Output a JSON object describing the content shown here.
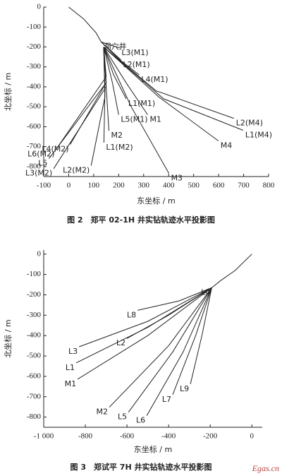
{
  "chart_data": [
    {
      "type": "line",
      "title": "图 2　郑平 02-1H 井实钻轨迹水平投影图",
      "x_label": "东坐标 / m",
      "y_label": "北坐标 / m",
      "color": "#222222",
      "xlim": [
        -100,
        800
      ],
      "ylim": [
        -850,
        0
      ],
      "xticks": [
        -100,
        0,
        100,
        200,
        300,
        400,
        500,
        600,
        700,
        800
      ],
      "yticks": [
        0,
        -100,
        -200,
        -300,
        -400,
        -500,
        -600,
        -700,
        -800
      ],
      "series": [
        {
          "name": "洞穴井",
          "x": [
            0,
            60,
            110,
            130
          ],
          "values": [
            0,
            -60,
            -130,
            -175
          ]
        },
        {
          "name": "L3(M1)",
          "x": [
            130,
            165,
            203
          ],
          "values": [
            -175,
            -190,
            -205
          ]
        },
        {
          "name": "L2(M1)",
          "x": [
            130,
            170,
            209
          ],
          "values": [
            -175,
            -220,
            -265
          ]
        },
        {
          "name": "L4(M1)",
          "x": [
            130,
            200,
            282
          ],
          "values": [
            -175,
            -260,
            -340
          ]
        },
        {
          "name": "L2(M4)",
          "x": [
            140,
            350,
            661
          ],
          "values": [
            -200,
            -420,
            -558
          ]
        },
        {
          "name": "L1(M4)",
          "x": [
            140,
            380,
            698
          ],
          "values": [
            -200,
            -460,
            -618
          ]
        },
        {
          "name": "M4",
          "x": [
            140,
            360,
            599
          ],
          "values": [
            -200,
            -450,
            -671
          ]
        },
        {
          "name": "M1",
          "x": [
            140,
            230,
            316
          ],
          "values": [
            -200,
            -380,
            -540
          ]
        },
        {
          "name": "L1(M1)",
          "x": [
            140,
            180,
            230
          ],
          "values": [
            -200,
            -340,
            -460
          ]
        },
        {
          "name": "M3",
          "x": [
            140,
            250,
            401
          ],
          "values": [
            -200,
            -500,
            -834
          ]
        },
        {
          "name": "L5(M1)",
          "x": [
            140,
            175,
            200
          ],
          "values": [
            -200,
            -380,
            -540
          ]
        },
        {
          "name": "M2",
          "x": [
            140,
            150,
            161
          ],
          "values": [
            -200,
            -400,
            -620
          ]
        },
        {
          "name": "L1(M2)",
          "x": [
            140,
            145,
            141
          ],
          "values": [
            -200,
            -420,
            -680
          ]
        },
        {
          "name": "L2(M2)",
          "x": [
            140,
            145,
            90
          ],
          "values": [
            -200,
            -450,
            -795
          ]
        },
        {
          "name": "L6(M2)",
          "x": [
            140,
            150,
            -51
          ],
          "values": [
            -200,
            -350,
            -714
          ]
        },
        {
          "name": "L4(M2)",
          "x": [
            140,
            150,
            6
          ],
          "values": [
            -200,
            -380,
            -689
          ]
        },
        {
          "name": "L5",
          "x": [
            140,
            150,
            -79
          ],
          "values": [
            -200,
            -380,
            -760
          ]
        },
        {
          "name": "L3(M2)",
          "x": [
            140,
            150,
            -60
          ],
          "values": [
            -200,
            -400,
            -810
          ]
        }
      ]
    },
    {
      "type": "line",
      "title": "图 3　郑试平 7H 井实钻轨迹水平投影图",
      "x_label": "东坐标 / m",
      "y_label": "北坐标 / m",
      "color": "#222222",
      "watermark": "Egas.cn",
      "xlim": [
        -1000,
        50
      ],
      "ylim": [
        -850,
        20
      ],
      "xticks": [
        {
          "value": -1000,
          "label": "-1 000"
        },
        -800,
        -600,
        -400,
        -200,
        0
      ],
      "yticks": [
        0,
        -100,
        -200,
        -300,
        -400,
        -500,
        -600,
        -700,
        -800
      ],
      "series": [
        {
          "name": "L4",
          "x": [
            0,
            -80,
            -150,
            -193
          ],
          "values": [
            0,
            -80,
            -130,
            -165
          ]
        },
        {
          "name": "L8",
          "x": [
            -193,
            -350,
            -549
          ],
          "values": [
            -165,
            -230,
            -276
          ]
        },
        {
          "name": "L3",
          "x": [
            -193,
            -500,
            -830
          ],
          "values": [
            -165,
            -330,
            -455
          ]
        },
        {
          "name": "L2",
          "x": [
            -193,
            -400,
            -600
          ],
          "values": [
            -165,
            -300,
            -414
          ]
        },
        {
          "name": "L1",
          "x": [
            -193,
            -500,
            -844
          ],
          "values": [
            -165,
            -360,
            -534
          ]
        },
        {
          "name": "M1",
          "x": [
            -193,
            -500,
            -837
          ],
          "values": [
            -165,
            -400,
            -614
          ]
        },
        {
          "name": "M2",
          "x": [
            -193,
            -400,
            -685
          ],
          "values": [
            -165,
            -450,
            -752
          ]
        },
        {
          "name": "L5",
          "x": [
            -193,
            -380,
            -593
          ],
          "values": [
            -165,
            -480,
            -776
          ]
        },
        {
          "name": "L6",
          "x": [
            -193,
            -330,
            -505
          ],
          "values": [
            -165,
            -480,
            -793
          ]
        },
        {
          "name": "L7",
          "x": [
            -193,
            -270,
            -380
          ],
          "values": [
            -165,
            -400,
            -690
          ]
        },
        {
          "name": "L9",
          "x": [
            -193,
            -240,
            -295
          ],
          "values": [
            -165,
            -400,
            -638
          ]
        }
      ]
    }
  ]
}
